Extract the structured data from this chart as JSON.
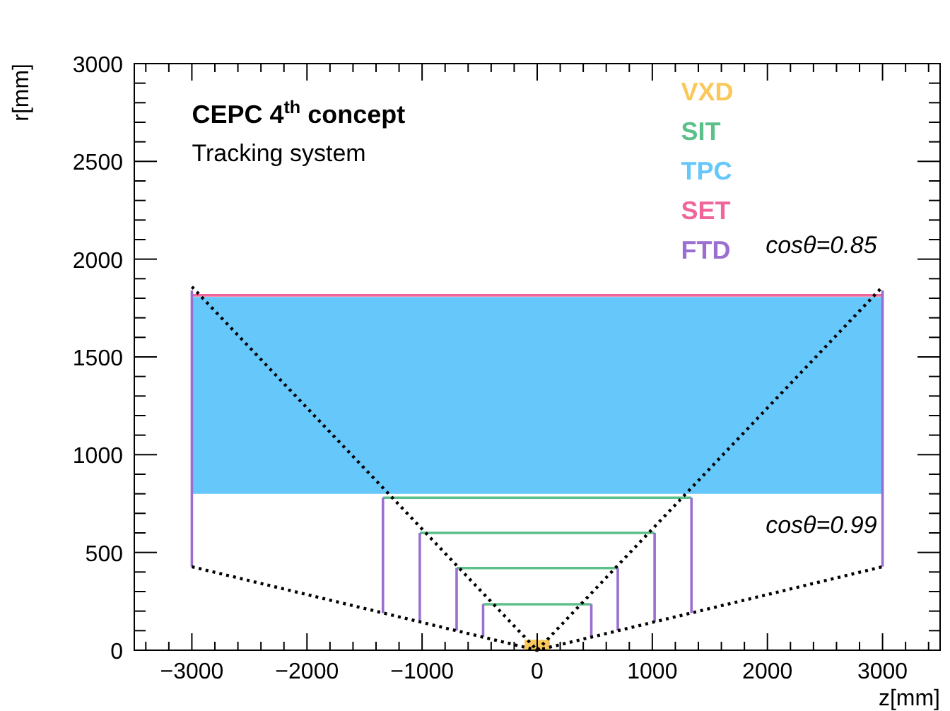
{
  "chart_data": {
    "type": "line",
    "title": "CEPC 4$^{th}$ concept",
    "subtitle": "Tracking system",
    "xlabel": "z[mm]",
    "ylabel": "r[mm]",
    "xlim": [
      -3500,
      3500
    ],
    "ylim": [
      0,
      3000
    ],
    "xticks": [
      -3000,
      -2000,
      -1000,
      0,
      1000,
      2000,
      3000,
      {
        "value": -3400,
        "label": null
      },
      {
        "value": -3200,
        "label": null
      },
      {
        "value": -2800,
        "label": null
      },
      {
        "value": -2600,
        "label": null
      },
      {
        "value": -2400,
        "label": null
      },
      {
        "value": -2200,
        "label": null
      },
      {
        "value": -1800,
        "label": null
      },
      {
        "value": -1600,
        "label": null
      },
      {
        "value": -1400,
        "label": null
      },
      {
        "value": -1200,
        "label": null
      },
      {
        "value": -800,
        "label": null
      },
      {
        "value": -600,
        "label": null
      },
      {
        "value": -400,
        "label": null
      },
      {
        "value": -200,
        "label": null
      },
      {
        "value": 200,
        "label": null
      },
      {
        "value": 400,
        "label": null
      },
      {
        "value": 600,
        "label": null
      },
      {
        "value": 800,
        "label": null
      },
      {
        "value": 1200,
        "label": null
      },
      {
        "value": 1400,
        "label": null
      },
      {
        "value": 1600,
        "label": null
      },
      {
        "value": 1800,
        "label": null
      },
      {
        "value": 2200,
        "label": null
      },
      {
        "value": 2400,
        "label": null
      },
      {
        "value": 2600,
        "label": null
      },
      {
        "value": 2800,
        "label": null
      },
      {
        "value": 3200,
        "label": null
      },
      {
        "value": 3400,
        "label": null
      }
    ],
    "yticks": [
      0,
      500,
      1000,
      1500,
      2000,
      2500,
      3000,
      {
        "value": 100,
        "label": null
      },
      {
        "value": 200,
        "label": null
      },
      {
        "value": 300,
        "label": null
      },
      {
        "value": 400,
        "label": null
      },
      {
        "value": 600,
        "label": null
      },
      {
        "value": 700,
        "label": null
      },
      {
        "value": 800,
        "label": null
      },
      {
        "value": 900,
        "label": null
      },
      {
        "value": 1100,
        "label": null
      },
      {
        "value": 1200,
        "label": null
      },
      {
        "value": 1300,
        "label": null
      },
      {
        "value": 1400,
        "label": null
      },
      {
        "value": 1600,
        "label": null
      },
      {
        "value": 1700,
        "label": null
      },
      {
        "value": 1800,
        "label": null
      },
      {
        "value": 1900,
        "label": null
      },
      {
        "value": 2100,
        "label": null
      },
      {
        "value": 2200,
        "label": null
      },
      {
        "value": 2300,
        "label": null
      },
      {
        "value": 2400,
        "label": null
      },
      {
        "value": 2600,
        "label": null
      },
      {
        "value": 2700,
        "label": null
      },
      {
        "value": 2800,
        "label": null
      },
      {
        "value": 2900,
        "label": null
      }
    ],
    "grid": false,
    "legend": "top right",
    "marker": "none",
    "series": [
      {
        "name": "VXD",
        "type": "area",
        "color": "#f9c85a",
        "x": [
          -110,
          110
        ],
        "values": [
          50,
          50
        ]
      },
      {
        "name": "SIT",
        "color": "#5cc08a",
        "x": [
          -1340,
          1340,
          null,
          -1020,
          1020,
          null,
          -700,
          700,
          null,
          -470,
          470
        ],
        "values": [
          780,
          780,
          null,
          600,
          600,
          null,
          420,
          420,
          null,
          235,
          235
        ]
      },
      {
        "name": "TPC",
        "color": "#66c7fb",
        "x": [
          -3000,
          3000
        ],
        "values": [
          1800,
          1800
        ],
        "lower": [
          800,
          800
        ],
        "upper": [
          1800,
          1800
        ]
      },
      {
        "name": "SET",
        "color": "#f0659a",
        "x": [
          -3000,
          3000
        ],
        "values": [
          1815,
          1815
        ]
      },
      {
        "name": "FTD",
        "color": "#9a6fd0",
        "x": [
          -3000,
          -3000,
          null,
          3000,
          3000,
          null,
          -1340,
          -1340,
          null,
          1340,
          1340,
          null,
          -1020,
          -1020,
          null,
          1020,
          1020,
          null,
          -700,
          -700,
          null,
          700,
          700,
          null,
          -470,
          -470,
          null,
          470,
          470
        ],
        "values": [
          427,
          1840,
          null,
          427,
          1840,
          null,
          190,
          780,
          null,
          190,
          780,
          null,
          145,
          600,
          null,
          145,
          600,
          null,
          100,
          420,
          null,
          100,
          420,
          null,
          70,
          235,
          null,
          70,
          235
        ]
      },
      {
        "color": "#000000",
        "line_style": "dotted",
        "x": [
          -3000,
          0,
          3000
        ],
        "values": [
          1859,
          0,
          1859
        ]
      },
      {
        "color": "#000000",
        "line_style": "dotted",
        "x": [
          -3000,
          0,
          3000
        ],
        "values": [
          427,
          0,
          427
        ]
      }
    ],
    "annotations": [
      {
        "text": "cosθ=0.85",
        "x": 3000,
        "y": 1859
      },
      {
        "text": "cosθ=0.99",
        "x": 3000,
        "y": 427
      }
    ]
  }
}
